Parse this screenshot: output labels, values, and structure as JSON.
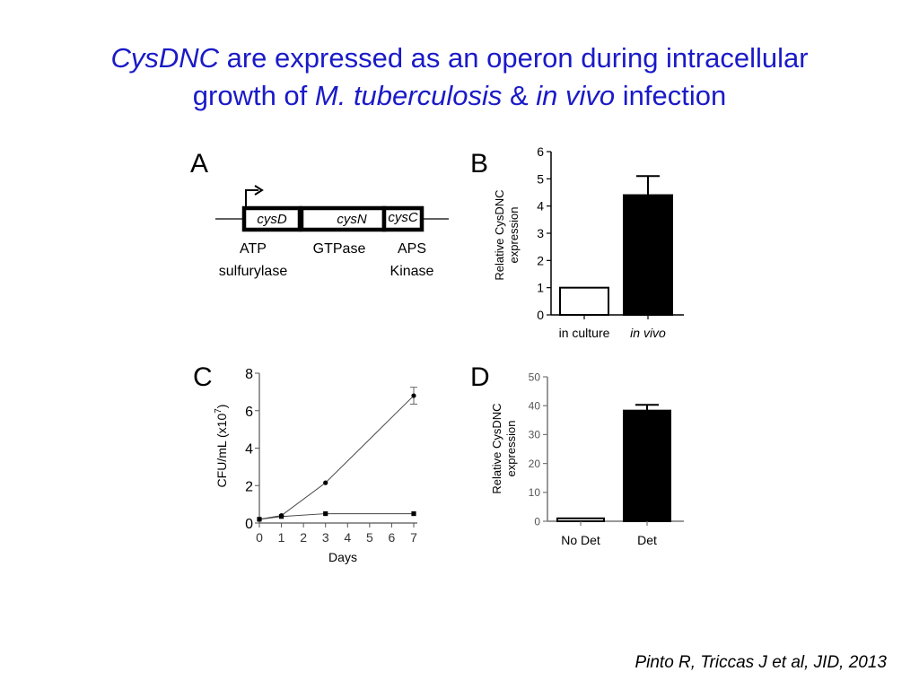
{
  "title": {
    "t1": "CysDNC",
    "t2": " are expressed as an operon during intracellular",
    "t3": "growth of ",
    "t4": "M. tuberculosis",
    "t5": " & ",
    "t6": "in vivo",
    "t7": " infection"
  },
  "citation": "Pinto R, Triccas J et al, JID, 2013",
  "panels": {
    "a": {
      "letter": "A",
      "genes": [
        "cysD",
        "cysN",
        "cysC"
      ],
      "labels": [
        {
          "l1": "ATP",
          "l2": "sulfurylase"
        },
        {
          "l1": "GTPase",
          "l2": ""
        },
        {
          "l1": "APS",
          "l2": "Kinase"
        }
      ]
    },
    "b": {
      "letter": "B"
    },
    "c": {
      "letter": "C"
    },
    "d": {
      "letter": "D"
    }
  },
  "chart_data": [
    {
      "type": "bar",
      "panel": "B",
      "categories": [
        "in culture",
        "in vivo"
      ],
      "values": [
        1.0,
        4.4
      ],
      "errors": [
        0,
        0.7
      ],
      "ylabel_lines": [
        "Relative CysDNC",
        "expression"
      ],
      "ylim": [
        0,
        6
      ],
      "yticks": [
        0,
        1,
        2,
        3,
        4,
        5,
        6
      ],
      "fills": [
        "#ffffff",
        "#000000"
      ]
    },
    {
      "type": "line",
      "panel": "C",
      "x": [
        0,
        1,
        3,
        7
      ],
      "series": [
        {
          "values": [
            0.2,
            0.4,
            2.15,
            6.8
          ],
          "errors": [
            0,
            0,
            0,
            0.45
          ],
          "marker": "circle"
        },
        {
          "values": [
            0.2,
            0.35,
            0.5,
            0.5
          ],
          "errors": [
            0,
            0,
            0,
            0
          ],
          "marker": "square"
        }
      ],
      "xlabel": "Days",
      "ylabel_base": "CFU/mL (x10",
      "ylabel_sup": "7",
      "ylabel_end": ")",
      "xlim": [
        0,
        7
      ],
      "ylim": [
        0,
        8
      ],
      "xticks": [
        0,
        1,
        2,
        3,
        4,
        5,
        6,
        7
      ],
      "yticks": [
        0,
        2,
        4,
        6,
        8
      ]
    },
    {
      "type": "bar",
      "panel": "D",
      "categories": [
        "No Det",
        "Det"
      ],
      "values": [
        1.0,
        38.3
      ],
      "errors": [
        0,
        2.0
      ],
      "ylabel_lines": [
        "Relative CysDNC",
        "expression"
      ],
      "ylim": [
        0,
        50
      ],
      "yticks": [
        0,
        10,
        20,
        30,
        40,
        50
      ],
      "fills": [
        "#ffffff",
        "#000000"
      ]
    }
  ]
}
